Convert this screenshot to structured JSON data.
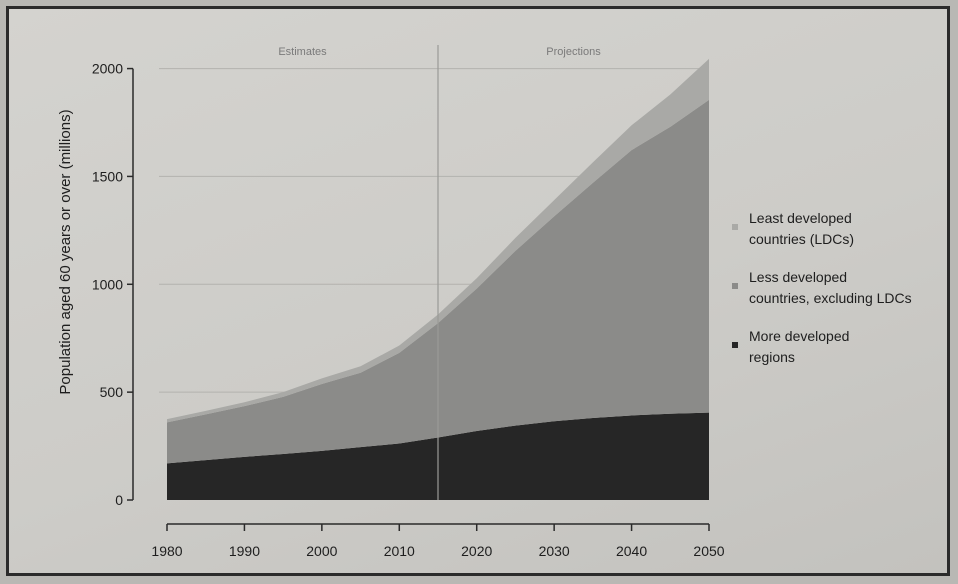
{
  "chart_data": {
    "type": "area",
    "stacked": true,
    "title": "",
    "xlabel": "",
    "ylabel": "Population aged 60 years or over (millions)",
    "x": [
      1980,
      1985,
      1990,
      1995,
      2000,
      2005,
      2010,
      2015,
      2020,
      2025,
      2030,
      2035,
      2040,
      2045,
      2050
    ],
    "xlim": [
      1980,
      2050
    ],
    "ylim": [
      0,
      2100
    ],
    "x_ticks": [
      1980,
      1990,
      2000,
      2010,
      2020,
      2030,
      2040,
      2050
    ],
    "y_ticks": [
      0,
      500,
      1000,
      1500,
      2000
    ],
    "grid": "horizontal",
    "legend_position": "right",
    "series": [
      {
        "name": "More developed regions",
        "color": "#262626",
        "values": [
          170,
          185,
          200,
          213,
          228,
          245,
          262,
          290,
          320,
          345,
          365,
          380,
          392,
          400,
          405
        ]
      },
      {
        "name": "Less developed countries, excluding LDCs",
        "color": "#8b8b89",
        "values": [
          190,
          212,
          235,
          265,
          310,
          345,
          420,
          530,
          660,
          810,
          950,
          1090,
          1230,
          1330,
          1450
        ]
      },
      {
        "name": "Least developed countries (LDCs)",
        "color": "#a9a9a6",
        "values": [
          15,
          16,
          18,
          22,
          26,
          30,
          34,
          40,
          48,
          60,
          75,
          95,
          115,
          150,
          190
        ]
      }
    ],
    "periods": [
      {
        "label": "Estimates",
        "from": 1980,
        "to": 2015
      },
      {
        "label": "Projections",
        "from": 2015,
        "to": 2050
      }
    ],
    "divider_year": 2015
  }
}
